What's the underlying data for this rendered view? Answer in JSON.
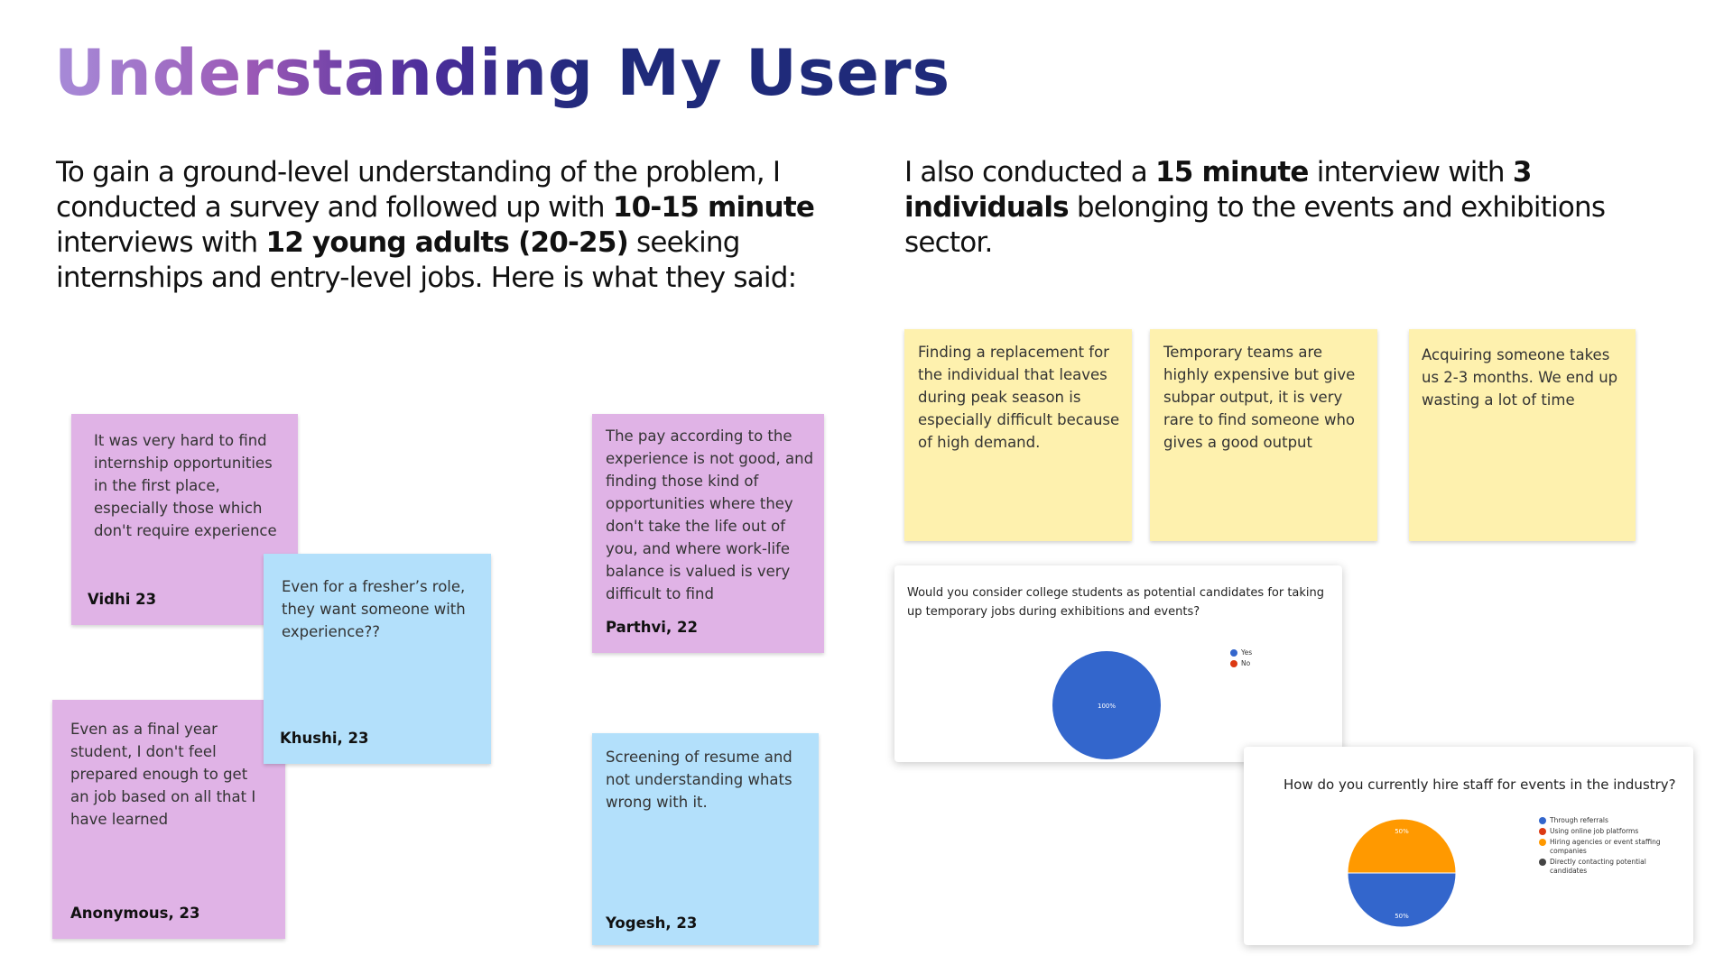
{
  "title": "Understanding My Users",
  "intro_left": {
    "t1": "To gain a ground-level understanding of the problem, I conducted a survey and followed up with ",
    "b1": "10-15 minute",
    "t2": " interviews with ",
    "b2": "12 young adults (20-25)",
    "t3": " seeking internships and entry-level jobs. Here is what they said:"
  },
  "intro_right": {
    "t1": "I also conducted a ",
    "b1": "15 minute",
    "t2": " interview with ",
    "b2": "3 individuals",
    "t3": " belonging to the events and exhibitions sector."
  },
  "user_notes": [
    {
      "quote": "It was very hard to find internship opportunities in the first place, especially those which don't require experience",
      "author": "Vidhi 23"
    },
    {
      "quote": "Even for a fresher’s role, they want someone with experience??",
      "author": "Khushi, 23"
    },
    {
      "quote": "Even as a final year student, I don't feel prepared enough to get an job based on all that I have learned",
      "author": "Anonymous, 23"
    },
    {
      "quote": "The pay according to the experience is not good, and finding those kind of opportunities where they don't take the life out of you, and where work-life balance is valued is very difficult to find",
      "author": "Parthvi, 22"
    },
    {
      "quote": "Screening of resume and not understanding whats wrong with it.",
      "author": "Yogesh, 23"
    }
  ],
  "industry_notes": [
    {
      "quote": "Finding a replacement for the individual that leaves during peak season is especially difficult because of high demand."
    },
    {
      "quote": "Temporary teams are highly expensive but give subpar output, it is very rare to find someone who gives a good output"
    },
    {
      "quote": "Acquiring someone takes us 2-3 months. We end up wasting a lot of time"
    }
  ],
  "colors": {
    "purple_note": "#e0b3e6",
    "blue_note": "#b3e0fb",
    "yellow_note": "#fef1ae",
    "pie_blue": "#3366cc",
    "pie_red": "#dc3912",
    "pie_orange": "#ff9900",
    "pie_dark": "#444444"
  },
  "chart_data": [
    {
      "type": "pie",
      "title": "Would you consider college students as potential candidates for taking up temporary jobs during exhibitions and events?",
      "categories": [
        "Yes",
        "No"
      ],
      "values": [
        100,
        0
      ],
      "labels": [
        "100%"
      ],
      "colors": [
        "#3366cc",
        "#dc3912"
      ],
      "legend": "right"
    },
    {
      "type": "pie",
      "title": "How do you currently hire staff for events in the industry?",
      "categories": [
        "Through referrals",
        "Using online job platforms",
        "Hiring agencies or event staffing companies",
        "Directly contacting potential candidates"
      ],
      "values": [
        50,
        0,
        50,
        0
      ],
      "labels": [
        "50%",
        "50%"
      ],
      "colors": [
        "#3366cc",
        "#dc3912",
        "#ff9900",
        "#444444"
      ],
      "legend": "right"
    }
  ]
}
